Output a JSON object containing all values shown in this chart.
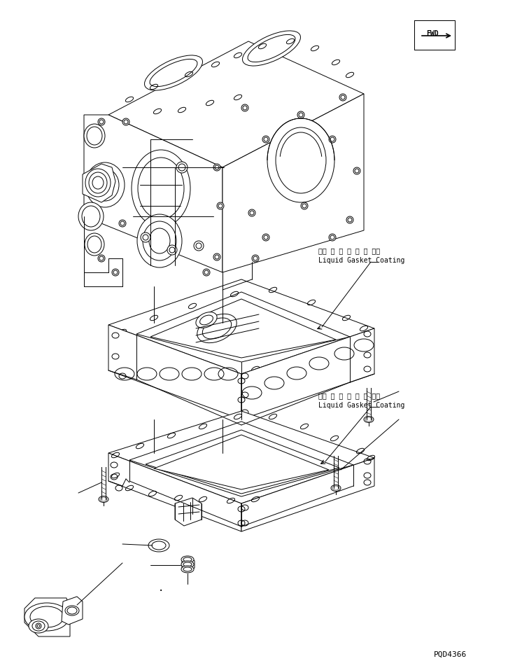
{
  "background_color": "#ffffff",
  "line_color": "#000000",
  "annotation1_japanese": "液状 ガ ス ケ ッ ト 塗布",
  "annotation1_english": "Liquid Gasket Coating",
  "annotation2_japanese": "液状 ガ ス ケ ッ ト 塗布",
  "annotation2_english": "Liquid Gasket Coating",
  "fwd_label": "FWD",
  "part_number": "PQD4366",
  "fig_width": 7.26,
  "fig_height": 9.45,
  "dpi": 100
}
